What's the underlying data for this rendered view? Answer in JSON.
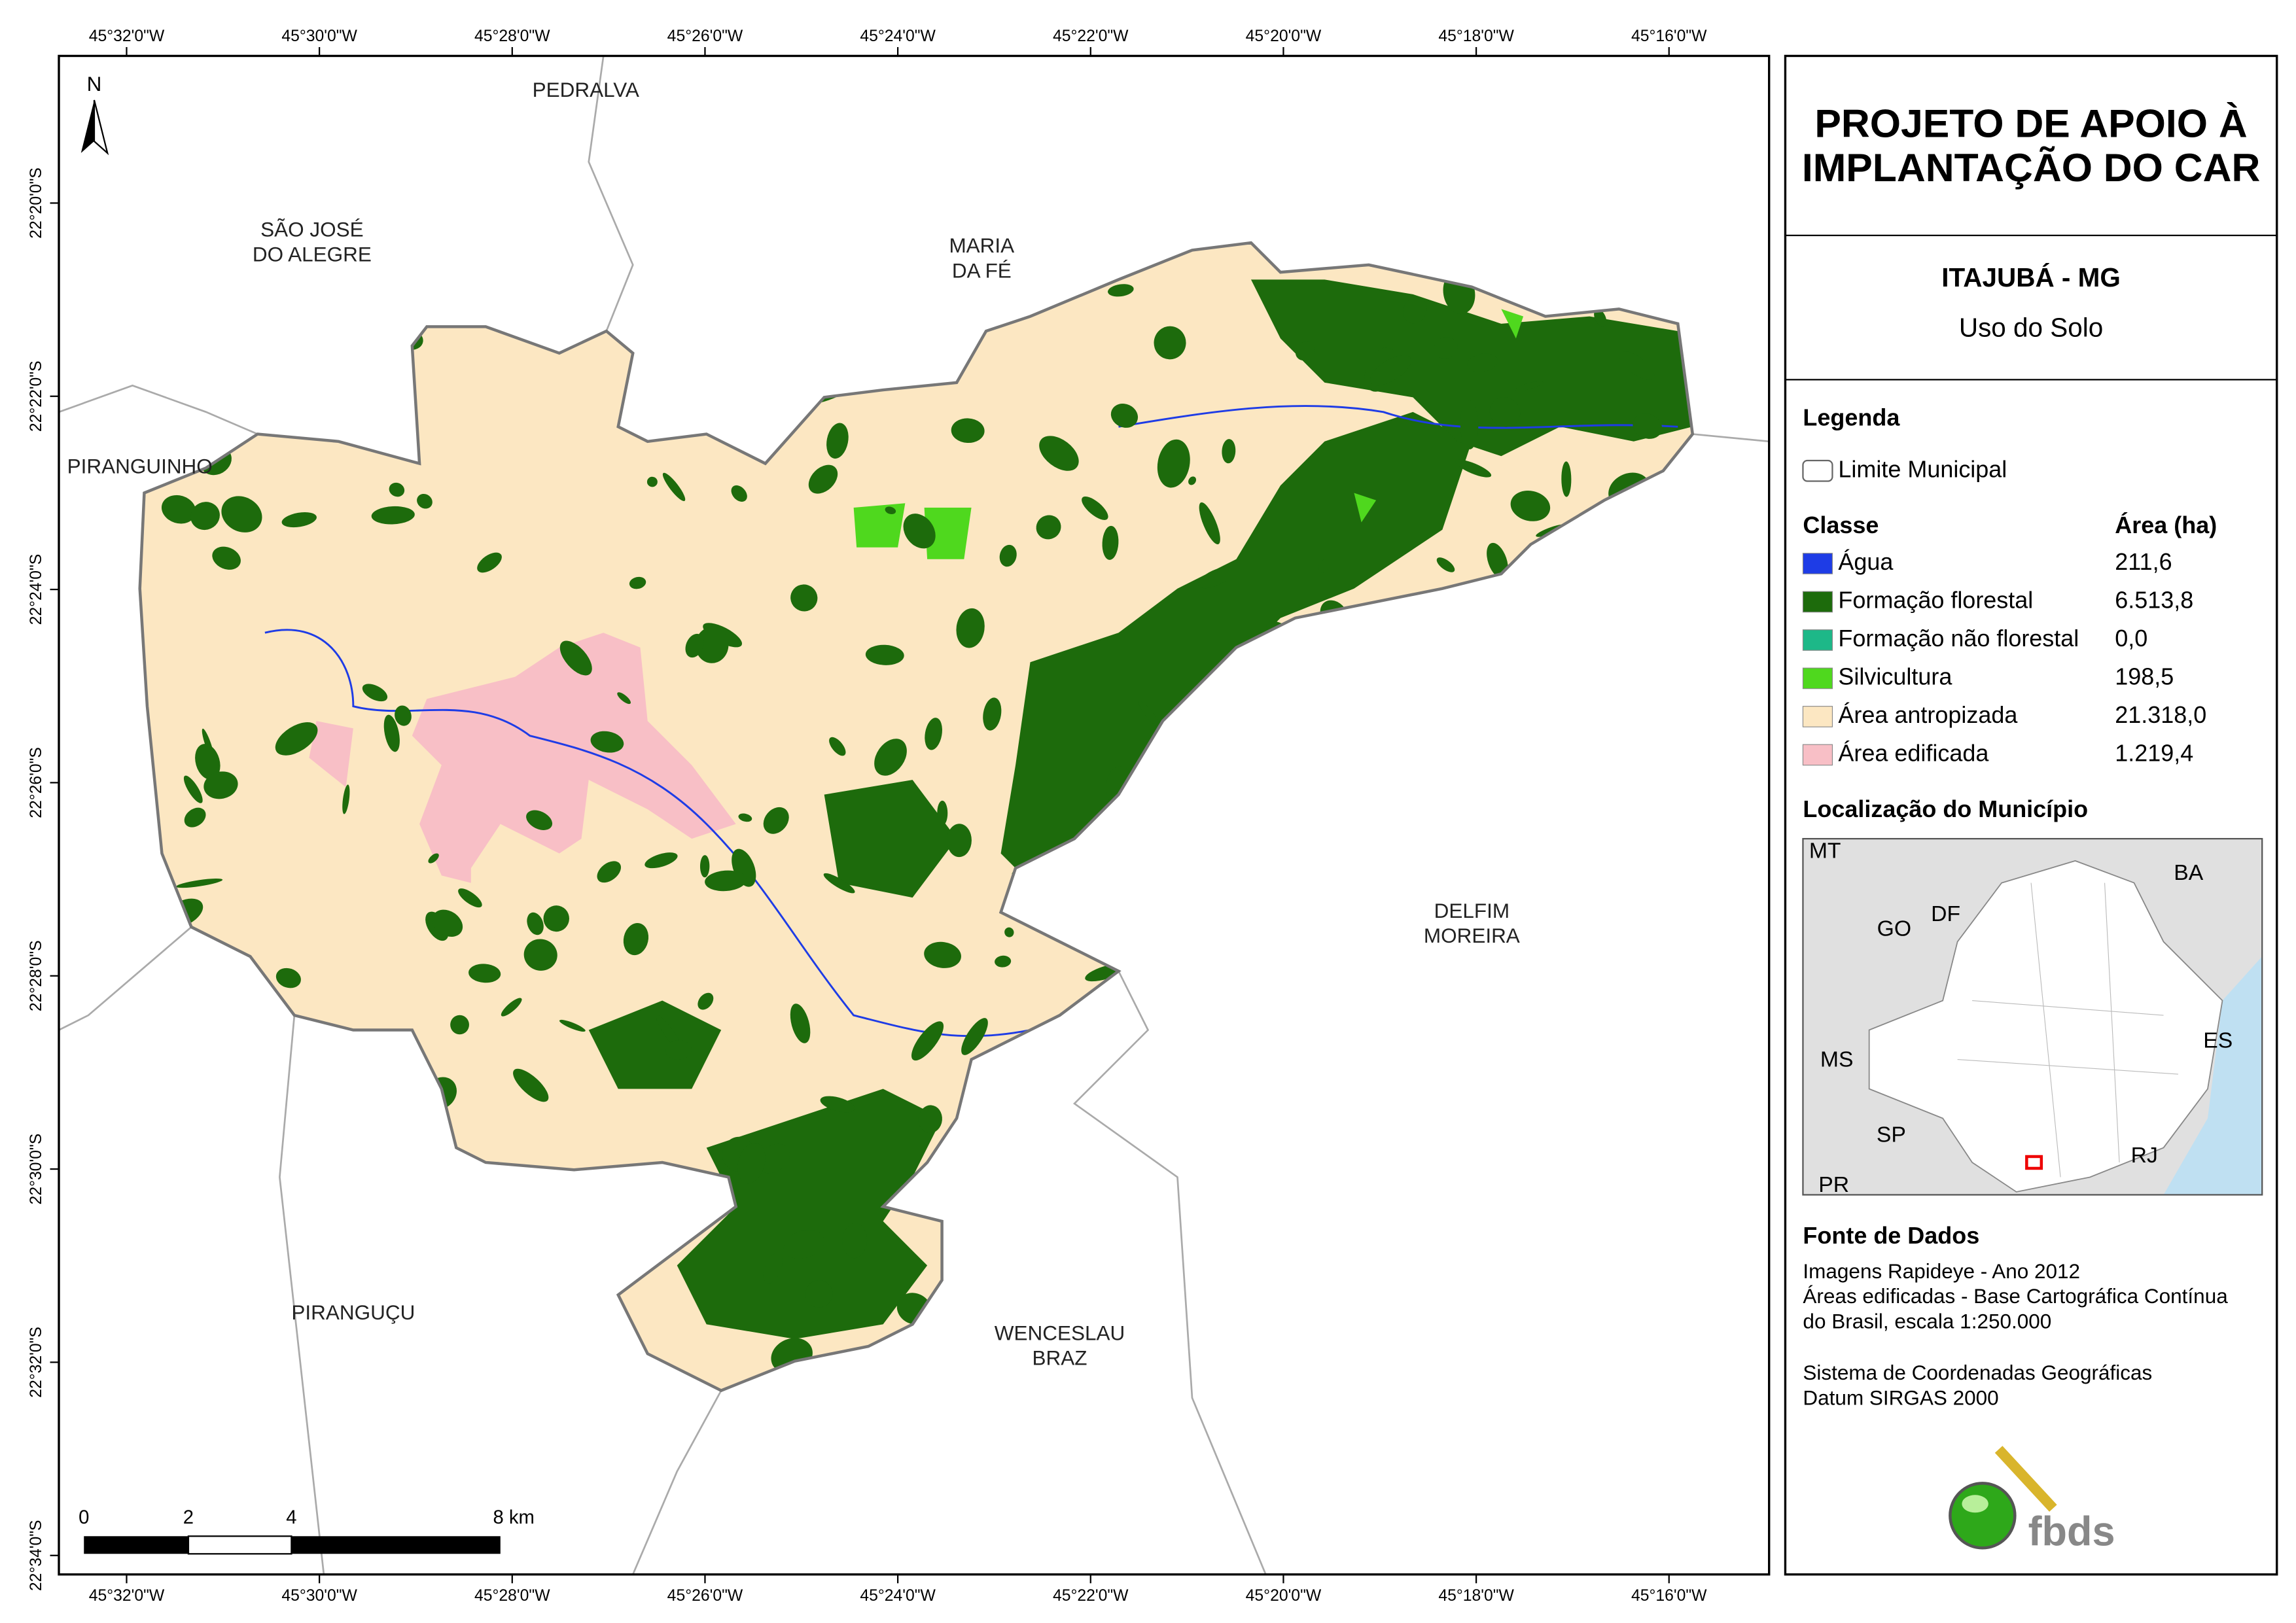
{
  "map": {
    "top_coords": [
      "45°32'0\"W",
      "45°30'0\"W",
      "45°28'0\"W",
      "45°26'0\"W",
      "45°24'0\"W",
      "45°22'0\"W",
      "45°20'0\"W",
      "45°18'0\"W",
      "45°16'0\"W"
    ],
    "bottom_coords": [
      "45°32'0\"W",
      "45°30'0\"W",
      "45°28'0\"W",
      "45°26'0\"W",
      "45°24'0\"W",
      "45°22'0\"W",
      "45°20'0\"W",
      "45°18'0\"W",
      "45°16'0\"W"
    ],
    "left_coords": [
      "22°20'0\"S",
      "22°22'0\"S",
      "22°24'0\"S",
      "22°26'0\"S",
      "22°28'0\"S",
      "22°30'0\"S",
      "22°32'0\"S",
      "22°34'0\"S"
    ],
    "north": "N",
    "neighbors": [
      {
        "lines": [
          "PEDRALVA"
        ]
      },
      {
        "lines": [
          "SÃO JOSÉ",
          "DO ALEGRE"
        ]
      },
      {
        "lines": [
          "MARIA",
          "DA FÉ"
        ]
      },
      {
        "lines": [
          "PIRANGUINHO"
        ]
      },
      {
        "lines": [
          "DELFIM",
          "MOREIRA"
        ]
      },
      {
        "lines": [
          "PIRANGUÇU"
        ]
      },
      {
        "lines": [
          "WENCESLAU",
          "BRAZ"
        ]
      }
    ],
    "scale": [
      "0",
      "2",
      "4",
      "8 km"
    ]
  },
  "panel": {
    "title": [
      "PROJETO DE APOIO À",
      "IMPLANTAÇÃO DO CAR"
    ],
    "place": "ITAJUBÁ - MG",
    "subtitle": "Uso do Solo",
    "legend_heading": "Legenda",
    "boundary_label": "Limite Municipal",
    "class_heading": "Classe",
    "area_heading": "Área (ha)",
    "classes": [
      {
        "name": "Água",
        "area": "211,6",
        "color": "#1e3ce6"
      },
      {
        "name": "Formação florestal",
        "area": "6.513,8",
        "color": "#1d6b0c"
      },
      {
        "name": "Formação não florestal",
        "area": "0,0",
        "color": "#1db888"
      },
      {
        "name": "Silvicultura",
        "area": "198,5",
        "color": "#4fd81e"
      },
      {
        "name": "Área antropizada",
        "area": "21.318,0",
        "color": "#fce7c2"
      },
      {
        "name": "Área edificada",
        "area": "1.219,4",
        "color": "#f8bfc6"
      }
    ],
    "locator_heading": "Localização do Município",
    "states": [
      "MT",
      "BA",
      "GO",
      "DF",
      "ES",
      "MS",
      "SP",
      "RJ",
      "PR"
    ],
    "source_heading": "Fonte de Dados",
    "source_lines": [
      "Imagens Rapideye - Ano 2012",
      "Áreas edificadas - Base Cartográfica Contínua",
      "do Brasil, escala 1:250.000"
    ],
    "crs_lines": [
      "Sistema de Coordenadas Geográficas",
      "Datum SIRGAS 2000"
    ],
    "logo": "fbds"
  }
}
